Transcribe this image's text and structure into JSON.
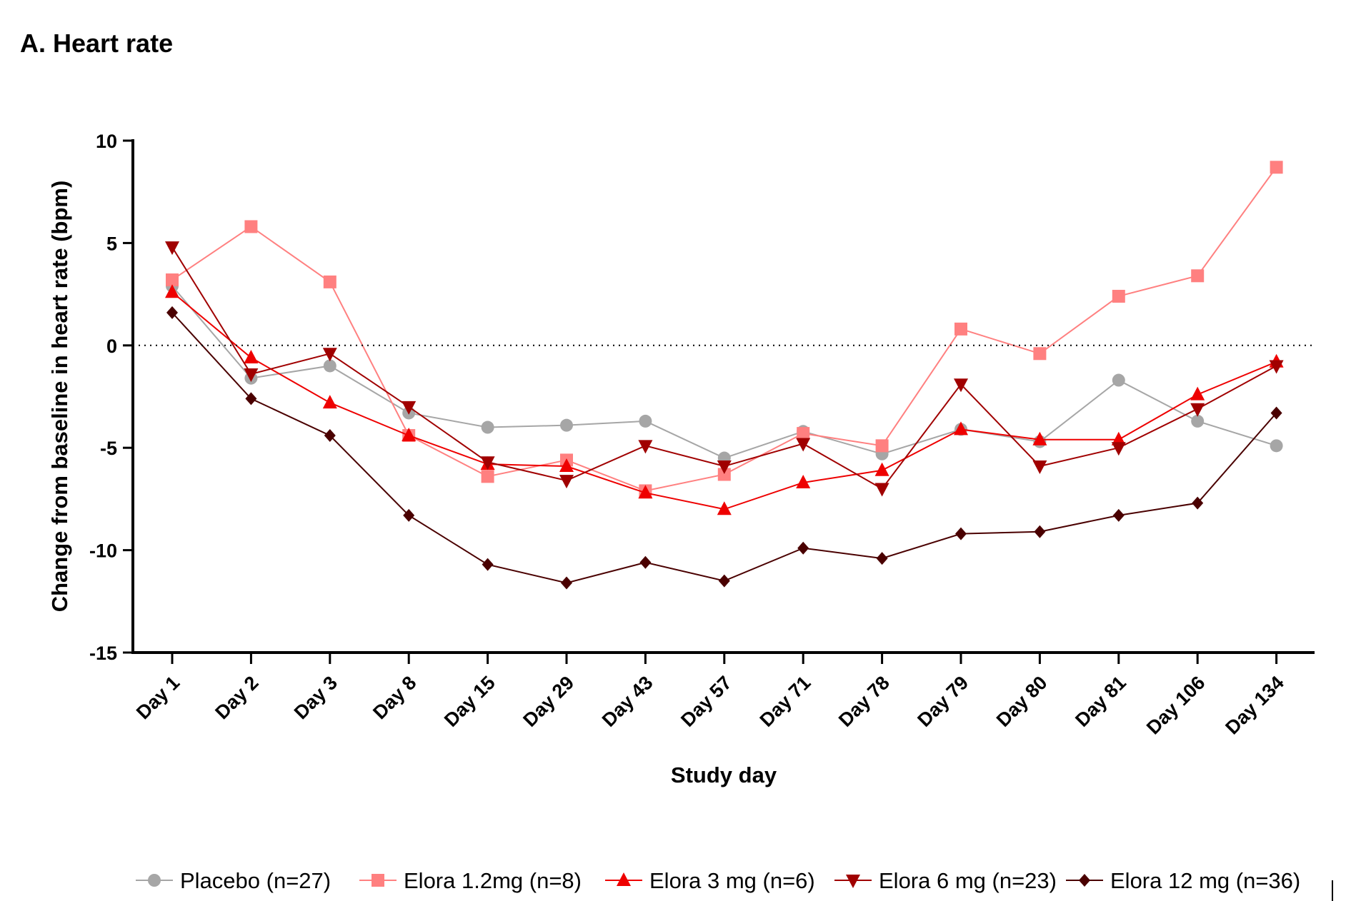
{
  "chart_data": {
    "type": "line",
    "title": "A. Heart rate",
    "xlabel": "Study day",
    "ylabel": "Change from baseline in heart rate  (bpm)",
    "categories": [
      "Day 1",
      "Day 2",
      "Day 3",
      "Day 8",
      "Day 15",
      "Day 29",
      "Day 43",
      "Day 57",
      "Day 71",
      "Day 78",
      "Day 79",
      "Day 80",
      "Day 81",
      "Day 106",
      "Day 134"
    ],
    "ylim": [
      -15,
      10
    ],
    "yticks": [
      10,
      5,
      0,
      -5,
      -10,
      -15
    ],
    "reference_line": 0,
    "grid": false,
    "legend_position": "bottom",
    "series": [
      {
        "name": "Placebo (n=27)",
        "color": "#a6a6a6",
        "marker": "circle",
        "values": [
          2.9,
          -1.6,
          -1.0,
          -3.3,
          -4.0,
          -3.9,
          -3.7,
          -5.5,
          -4.2,
          -5.3,
          -4.1,
          -4.7,
          -1.7,
          -3.7,
          -4.9
        ]
      },
      {
        "name": "Elora 1.2mg (n=8)",
        "color": "#ff8080",
        "marker": "square",
        "values": [
          3.2,
          5.8,
          3.1,
          -4.4,
          -6.4,
          -5.6,
          -7.1,
          -6.3,
          -4.3,
          -4.9,
          0.8,
          -0.4,
          2.4,
          3.4,
          8.7
        ]
      },
      {
        "name": "Elora 3 mg (n=6)",
        "color": "#ee0000",
        "marker": "triangle-up",
        "values": [
          2.6,
          -0.6,
          -2.8,
          -4.4,
          -5.8,
          -5.9,
          -7.2,
          -8.0,
          -6.7,
          -6.1,
          -4.1,
          -4.6,
          -4.6,
          -2.4,
          -0.8
        ]
      },
      {
        "name": "Elora 6 mg (n=23)",
        "color": "#a00000",
        "marker": "triangle-down",
        "values": [
          4.8,
          -1.4,
          -0.4,
          -3.0,
          -5.7,
          -6.6,
          -4.9,
          -5.9,
          -4.8,
          -7.0,
          -1.9,
          -5.9,
          -5.0,
          -3.1,
          -1.0
        ]
      },
      {
        "name": "Elora 12 mg (n=36)",
        "color": "#4a0000",
        "marker": "diamond",
        "values": [
          1.6,
          -2.6,
          -4.4,
          -8.3,
          -10.7,
          -11.6,
          -10.6,
          -11.5,
          -9.9,
          -10.4,
          -9.2,
          -9.1,
          -8.3,
          -7.7,
          -3.3
        ]
      }
    ]
  }
}
